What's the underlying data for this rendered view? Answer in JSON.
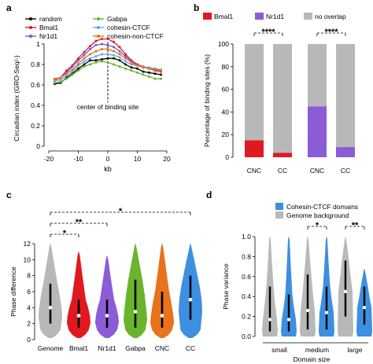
{
  "chart_data": [
    {
      "panel": "a",
      "type": "line",
      "xlabel": "kb",
      "ylabel": "Circadian index (GRO-Seq/-)",
      "ylim": [
        0,
        1.0
      ],
      "xlim": [
        -20,
        20
      ],
      "xticks": [
        -20,
        -10,
        0,
        10,
        20
      ],
      "yticks": [
        0,
        0.2,
        0.4,
        0.6,
        0.8,
        1.0
      ],
      "annotation": "center of binding site",
      "legend_position": "top-left",
      "x": [
        -18,
        -16,
        -14,
        -12,
        -10,
        -8,
        -6,
        -4,
        -2,
        0,
        2,
        4,
        6,
        8,
        10,
        12,
        14,
        16,
        18
      ],
      "series": [
        {
          "name": "random",
          "color": "#000000",
          "values": [
            0.61,
            0.62,
            0.67,
            0.71,
            0.76,
            0.8,
            0.84,
            0.84,
            0.85,
            0.86,
            0.86,
            0.84,
            0.8,
            0.77,
            0.76,
            0.73,
            0.72,
            0.71,
            0.7
          ]
        },
        {
          "name": "Bmal1",
          "color": "#e0191f",
          "values": [
            0.65,
            0.67,
            0.74,
            0.79,
            0.86,
            0.92,
            0.98,
            1.03,
            1.05,
            1.05,
            1.02,
            0.97,
            0.9,
            0.84,
            0.8,
            0.78,
            0.76,
            0.74,
            0.73
          ]
        },
        {
          "name": "Nr1d1",
          "color": "#7b52d6",
          "values": [
            0.66,
            0.67,
            0.72,
            0.78,
            0.84,
            0.89,
            0.95,
            0.99,
            1.0,
            0.99,
            0.97,
            0.93,
            0.88,
            0.83,
            0.79,
            0.77,
            0.76,
            0.75,
            0.74
          ]
        },
        {
          "name": "Gabpa",
          "color": "#6ab42d",
          "values": [
            0.62,
            0.63,
            0.66,
            0.7,
            0.74,
            0.78,
            0.8,
            0.82,
            0.83,
            0.82,
            0.8,
            0.78,
            0.76,
            0.74,
            0.72,
            0.7,
            0.68,
            0.66,
            0.66
          ]
        },
        {
          "name": "cohesin-CTCF",
          "color": "#5aa9e6",
          "values": [
            0.64,
            0.65,
            0.69,
            0.73,
            0.79,
            0.83,
            0.86,
            0.88,
            0.9,
            0.9,
            0.89,
            0.87,
            0.83,
            0.8,
            0.79,
            0.78,
            0.77,
            0.76,
            0.75
          ]
        },
        {
          "name": "cohesin-non-CTCF",
          "color": "#e8731a",
          "values": [
            0.66,
            0.67,
            0.71,
            0.75,
            0.81,
            0.86,
            0.9,
            0.93,
            0.95,
            0.95,
            0.93,
            0.9,
            0.86,
            0.82,
            0.79,
            0.77,
            0.76,
            0.75,
            0.74
          ]
        }
      ]
    },
    {
      "panel": "b",
      "type": "bar",
      "ylabel": "Percentage of binding sites (%)",
      "ylim": [
        0,
        100
      ],
      "yticks": [
        0,
        20,
        40,
        60,
        80,
        100
      ],
      "categories": [
        "CNC",
        "CC",
        "CNC",
        "CC"
      ],
      "legend_position": "top",
      "series": [
        {
          "name": "Bmal1",
          "color": "#e0191f",
          "values": [
            15,
            4,
            0,
            0
          ]
        },
        {
          "name": "Nr1d1",
          "color": "#8c5bd6",
          "values": [
            0,
            0,
            45,
            9
          ]
        },
        {
          "name": "no overlap",
          "color": "#b8b8b8",
          "values": [
            85,
            96,
            55,
            91
          ]
        }
      ],
      "significance": [
        "****",
        "****"
      ]
    },
    {
      "panel": "c",
      "type": "violin",
      "ylabel": "Phase difference",
      "ylim": [
        0,
        12
      ],
      "yticks": [
        0,
        2,
        4,
        6,
        8,
        10,
        12
      ],
      "categories": [
        "Genome",
        "Bmal1",
        "Nr1d1",
        "Gabpa",
        "CNC",
        "CC"
      ],
      "colors": [
        "#b8b8b8",
        "#e0191f",
        "#8c5bd6",
        "#6ab42d",
        "#e8731a",
        "#3d8fe0"
      ],
      "medians": [
        4.0,
        3.0,
        3.0,
        3.5,
        3.0,
        5.0
      ],
      "q1": [
        2.0,
        1.5,
        1.5,
        1.5,
        1.5,
        2.5
      ],
      "q3": [
        7.0,
        5.0,
        5.0,
        7.5,
        6.0,
        8.0
      ],
      "max": [
        12,
        11,
        10.5,
        12,
        12,
        12
      ],
      "significance": [
        "*",
        "**",
        "*"
      ]
    },
    {
      "panel": "d",
      "type": "violin",
      "ylabel": "Phase variance",
      "xlabel": "Domain size",
      "ylim": [
        0,
        1.0
      ],
      "yticks": [
        0.0,
        0.2,
        0.4,
        0.6,
        0.8,
        1.0
      ],
      "categories": [
        "small",
        "medium",
        "large"
      ],
      "legend_position": "top-right",
      "series": [
        {
          "name": "Genome background",
          "color": "#b8b8b8",
          "medians": [
            0.17,
            0.26,
            0.45
          ],
          "q1": [
            0.05,
            0.07,
            0.2
          ],
          "q3": [
            0.5,
            0.62,
            0.76
          ]
        },
        {
          "name": "Cohesin-CTCF domains",
          "color": "#3d8fe0",
          "medians": [
            0.17,
            0.24,
            0.29
          ],
          "q1": [
            0.05,
            0.07,
            0.12
          ],
          "q3": [
            0.42,
            0.5,
            0.5
          ]
        }
      ],
      "significance": [
        "*",
        "**"
      ]
    }
  ]
}
